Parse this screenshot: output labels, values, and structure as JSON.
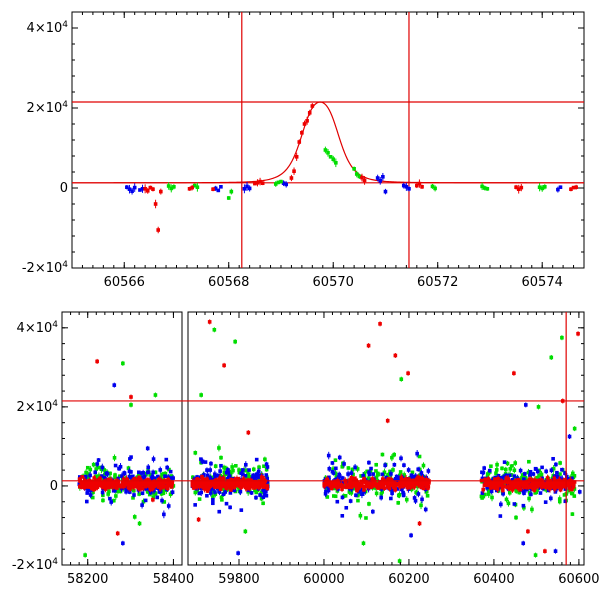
{
  "chart_data": [
    {
      "type": "scatter",
      "title": "",
      "xlabel": "",
      "ylabel": "",
      "xlim": [
        60565.0,
        60574.8
      ],
      "ylim": [
        -20000,
        44000
      ],
      "x_ticks": [
        60566,
        60568,
        60570,
        60572,
        60574
      ],
      "x_tick_labels": [
        "60566",
        "60568",
        "60570",
        "60572",
        "60574"
      ],
      "y_ticks": [
        -20000,
        0,
        20000,
        40000
      ],
      "y_tick_labels": [
        {
          "m": "-2×10",
          "e": "4"
        },
        {
          "m": "0",
          "e": ""
        },
        {
          "m": "2×10",
          "e": "4"
        },
        {
          "m": "4×10",
          "e": "4"
        }
      ],
      "hlines": [
        21500,
        1300
      ],
      "vlines": [
        60568.25,
        60571.45
      ],
      "model_curve": {
        "t0": 60569.75,
        "baseline": 1300,
        "peak": 21500,
        "width": 0.45,
        "color": "#e00000"
      },
      "series": [
        {
          "color": "#0000ee",
          "points": [
            [
              60566.05,
              200
            ],
            [
              60566.1,
              -300
            ],
            [
              60566.15,
              -800
            ],
            [
              60566.2,
              100
            ],
            [
              60566.3,
              -500
            ],
            [
              60566.35,
              -200
            ],
            [
              60567.75,
              -100
            ],
            [
              60567.8,
              -600
            ],
            [
              60567.85,
              300
            ],
            [
              60568.3,
              -200
            ],
            [
              60568.35,
              400
            ],
            [
              60568.4,
              -100
            ],
            [
              60569.05,
              1200
            ],
            [
              60569.1,
              900
            ],
            [
              60570.85,
              2500
            ],
            [
              60570.9,
              1800
            ],
            [
              60570.95,
              2800
            ],
            [
              60571.0,
              -900
            ],
            [
              60571.35,
              600
            ],
            [
              60571.4,
              300
            ],
            [
              60571.45,
              -200
            ],
            [
              60574.3,
              -400
            ],
            [
              60574.35,
              200
            ]
          ]
        },
        {
          "color": "#00dd00",
          "points": [
            [
              60566.85,
              500
            ],
            [
              60566.9,
              -100
            ],
            [
              60566.95,
              300
            ],
            [
              60567.35,
              600
            ],
            [
              60567.4,
              200
            ],
            [
              60568.0,
              -2500
            ],
            [
              60568.05,
              -900
            ],
            [
              60568.9,
              1000
            ],
            [
              60568.95,
              1400
            ],
            [
              60569.0,
              1600
            ],
            [
              60569.85,
              9500
            ],
            [
              60569.9,
              8800
            ],
            [
              60569.95,
              7800
            ],
            [
              60570.0,
              7200
            ],
            [
              60570.05,
              6300
            ],
            [
              60570.4,
              4800
            ],
            [
              60570.45,
              3500
            ],
            [
              60570.5,
              2900
            ],
            [
              60571.9,
              400
            ],
            [
              60571.95,
              -100
            ],
            [
              60572.85,
              400
            ],
            [
              60572.9,
              0
            ],
            [
              60572.95,
              -200
            ],
            [
              60573.95,
              200
            ],
            [
              60574.0,
              -100
            ],
            [
              60574.05,
              300
            ]
          ]
        },
        {
          "color": "#ee0000",
          "points": [
            [
              60566.4,
              -200
            ],
            [
              60566.45,
              -700
            ],
            [
              60566.5,
              100
            ],
            [
              60566.55,
              -300
            ],
            [
              60566.6,
              -4000
            ],
            [
              60566.65,
              -10500
            ],
            [
              60566.7,
              -900
            ],
            [
              60567.25,
              -200
            ],
            [
              60567.3,
              100
            ],
            [
              60567.7,
              -300
            ],
            [
              60568.5,
              1100
            ],
            [
              60568.55,
              1300
            ],
            [
              60568.6,
              1600
            ],
            [
              60568.65,
              1200
            ],
            [
              60569.2,
              2500
            ],
            [
              60569.25,
              4200
            ],
            [
              60569.3,
              7800
            ],
            [
              60569.35,
              11500
            ],
            [
              60569.4,
              13800
            ],
            [
              60569.45,
              16000
            ],
            [
              60569.5,
              16800
            ],
            [
              60569.55,
              18800
            ],
            [
              60569.6,
              20500
            ],
            [
              60570.55,
              2600
            ],
            [
              60570.6,
              1900
            ],
            [
              60571.6,
              600
            ],
            [
              60571.65,
              1100
            ],
            [
              60571.7,
              300
            ],
            [
              60573.5,
              200
            ],
            [
              60573.55,
              -300
            ],
            [
              60573.6,
              100
            ],
            [
              60574.55,
              -300
            ],
            [
              60574.6,
              100
            ],
            [
              60574.65,
              200
            ]
          ]
        }
      ]
    },
    {
      "type": "scatter",
      "title": "",
      "xlabel": "",
      "ylabel": "",
      "xlim": [
        58140,
        60612
      ],
      "x_breaks": [
        58420,
        59680
      ],
      "ylim": [
        -20000,
        44000
      ],
      "x_ticks": [
        58200,
        58400,
        59800,
        60000,
        60200,
        60400,
        60600
      ],
      "x_tick_labels": [
        "58200",
        "58400",
        "59800",
        "60000",
        "60200",
        "60400",
        "60600"
      ],
      "y_ticks": [
        -20000,
        0,
        20000,
        40000
      ],
      "y_tick_labels": [
        {
          "m": "-2×10",
          "e": "4"
        },
        {
          "m": "0",
          "e": ""
        },
        {
          "m": "2×10",
          "e": "4"
        },
        {
          "m": "4×10",
          "e": "4"
        }
      ],
      "hlines": [
        21500,
        1300
      ],
      "vlines": [
        60570
      ],
      "seasons": [
        [
          58180,
          58400
        ],
        [
          59690,
          59868
        ],
        [
          60000,
          60248
        ],
        [
          60370,
          60590
        ]
      ],
      "series": [
        {
          "color": "#ee0000",
          "points": [
            [
              58222,
              31500
            ],
            [
              58301,
              22500
            ],
            [
              58352,
              -3500
            ],
            [
              58270,
              -12000
            ],
            [
              59731,
              41500
            ],
            [
              59765,
              30500
            ],
            [
              59705,
              -8500
            ],
            [
              59822,
              13500
            ],
            [
              60105,
              35500
            ],
            [
              60132,
              41000
            ],
            [
              60168,
              33000
            ],
            [
              60198,
              28500
            ],
            [
              60150,
              16500
            ],
            [
              60061,
              1500
            ],
            [
              60225,
              -9500
            ],
            [
              60447,
              28500
            ],
            [
              60562,
              21500
            ],
            [
              60598,
              38500
            ],
            [
              60520,
              -16500
            ],
            [
              60480,
              -11500
            ]
          ]
        },
        {
          "color": "#00dd00",
          "points": [
            [
              58282,
              31000
            ],
            [
              58358,
              23000
            ],
            [
              58301,
              20500
            ],
            [
              58194,
              -17500
            ],
            [
              58321,
              -9500
            ],
            [
              59742,
              39500
            ],
            [
              59791,
              36500
            ],
            [
              59711,
              23000
            ],
            [
              59815,
              -11500
            ],
            [
              60093,
              -14500
            ],
            [
              60178,
              -19000
            ],
            [
              60182,
              27000
            ],
            [
              60535,
              32500
            ],
            [
              60560,
              37500
            ],
            [
              60505,
              20000
            ],
            [
              60452,
              -8000
            ],
            [
              60498,
              -17500
            ],
            [
              60590,
              14500
            ]
          ]
        },
        {
          "color": "#0000ee",
          "points": [
            [
              58262,
              25500
            ],
            [
              58340,
              9500
            ],
            [
              58282,
              -14500
            ],
            [
              59798,
              -17000
            ],
            [
              59865,
              5500
            ],
            [
              60115,
              -6500
            ],
            [
              60205,
              -12500
            ],
            [
              60469,
              -14500
            ],
            [
              60475,
              20500
            ],
            [
              60578,
              12500
            ],
            [
              60545,
              -16500
            ],
            [
              60602,
              -1500
            ]
          ]
        }
      ]
    }
  ]
}
